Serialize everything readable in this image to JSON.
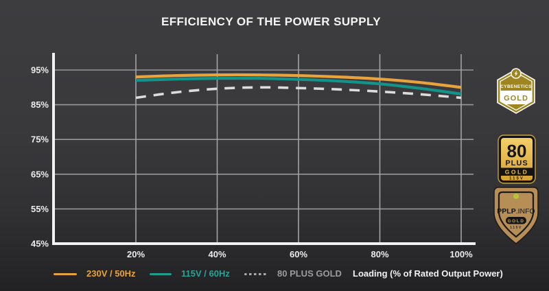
{
  "title": "EFFICIENCY OF THE POWER SUPPLY",
  "chart_data": {
    "type": "line",
    "title": "EFFICIENCY OF THE POWER SUPPLY",
    "xlabel": "Loading (% of Rated Output Power)",
    "ylabel": "",
    "x": [
      20,
      30,
      40,
      50,
      60,
      70,
      80,
      90,
      100
    ],
    "series": [
      {
        "name": "230V / 50Hz",
        "color": "#E8A33C",
        "style": "solid",
        "values": [
          93.0,
          93.4,
          93.6,
          93.6,
          93.4,
          93.0,
          92.4,
          91.4,
          90.0
        ]
      },
      {
        "name": "115V / 60Hz",
        "color": "#13948A",
        "style": "solid",
        "values": [
          92.0,
          92.4,
          92.6,
          92.6,
          92.3,
          91.8,
          91.0,
          89.7,
          88.1
        ]
      },
      {
        "name": "80 PLUS GOLD",
        "color": "#DCDCDC",
        "style": "dashed",
        "values": [
          87.0,
          88.6,
          89.6,
          90.0,
          89.8,
          89.4,
          88.8,
          88.0,
          87.0
        ]
      }
    ],
    "x_ticks": [
      {
        "label": "20%",
        "value": 20
      },
      {
        "label": "40%",
        "value": 40
      },
      {
        "label": "60%",
        "value": 60
      },
      {
        "label": "80%",
        "value": 80
      },
      {
        "label": "100%",
        "value": 100
      }
    ],
    "y_ticks": [
      {
        "label": "95%",
        "value": 95
      },
      {
        "label": "85%",
        "value": 85
      },
      {
        "label": "75%",
        "value": 75
      },
      {
        "label": "65%",
        "value": 65
      },
      {
        "label": "55%",
        "value": 55
      },
      {
        "label": "45%",
        "value": 45
      }
    ],
    "xlim": [
      0,
      103
    ],
    "ylim": [
      45,
      99.5
    ],
    "grid": true,
    "legend_position": "bottom"
  },
  "legend": {
    "items": [
      {
        "label": "230V / 50Hz",
        "text_color": "#E8A33C",
        "swatch": "solid-orange"
      },
      {
        "label": "115V / 60Hz",
        "text_color": "#2AA396",
        "swatch": "solid-teal"
      },
      {
        "label": "80 PLUS GOLD",
        "text_color": "#9C9C9C",
        "swatch": "dashed-gray"
      }
    ],
    "axis_label": "Loading (% of Rated Output Power)"
  },
  "badges": {
    "cybenetics": {
      "brand": "CYBENETICS",
      "tier": "GOLD"
    },
    "eighty_plus": {
      "number": "80",
      "word": "PLUS",
      "tier": "GOLD",
      "voltage": "115V"
    },
    "pplp": {
      "brand_main": "PPLP",
      "brand_suffix": ".INFO",
      "tier": "GOLD",
      "voltage": "115V"
    }
  },
  "colors": {
    "background_top": "#3D3D40",
    "background_bottom": "#222225",
    "axis": "#F2F2F2",
    "grid": "#98989C",
    "tick_text": "#ECECEC",
    "series_230v": "#E8A33C",
    "series_115v": "#13948A",
    "series_80plus_dash": "#DCDCDC",
    "legend_115v_text": "#2AA396",
    "legend_80plus_text": "#9C9C9C",
    "cybenetics_gold": "#9D861F",
    "eighty_plus_gold": "#E5B94F",
    "pplp_tan": "#B78E55"
  }
}
